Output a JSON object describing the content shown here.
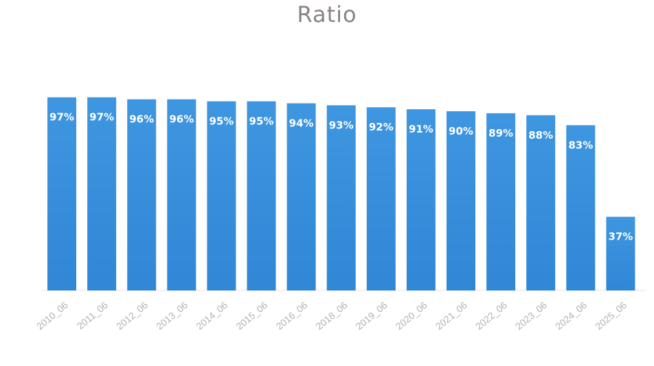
{
  "chart_data": {
    "type": "bar",
    "title": "Ratio",
    "categories": [
      "2010_06",
      "2011_06",
      "2012_06",
      "2013_06",
      "2014_06",
      "2015_06",
      "2016_06",
      "2018_06",
      "2019_06",
      "2020_06",
      "2021_06",
      "2022_06",
      "2023_06",
      "2024_06",
      "2025_06"
    ],
    "values": [
      97,
      97,
      96,
      96,
      95,
      95,
      94,
      93,
      92,
      91,
      90,
      89,
      88,
      83,
      37
    ],
    "value_labels": [
      "97%",
      "97%",
      "96%",
      "96%",
      "95%",
      "95%",
      "94%",
      "93%",
      "92%",
      "91%",
      "90%",
      "89%",
      "88%",
      "83%",
      "37%"
    ],
    "unit": "%",
    "xlabel": "",
    "ylabel": "",
    "ylim": [
      0,
      100
    ],
    "grid": false,
    "legend": "none",
    "bar_color": "#3f96e0",
    "bar_color_dark": "#2f87d6"
  }
}
